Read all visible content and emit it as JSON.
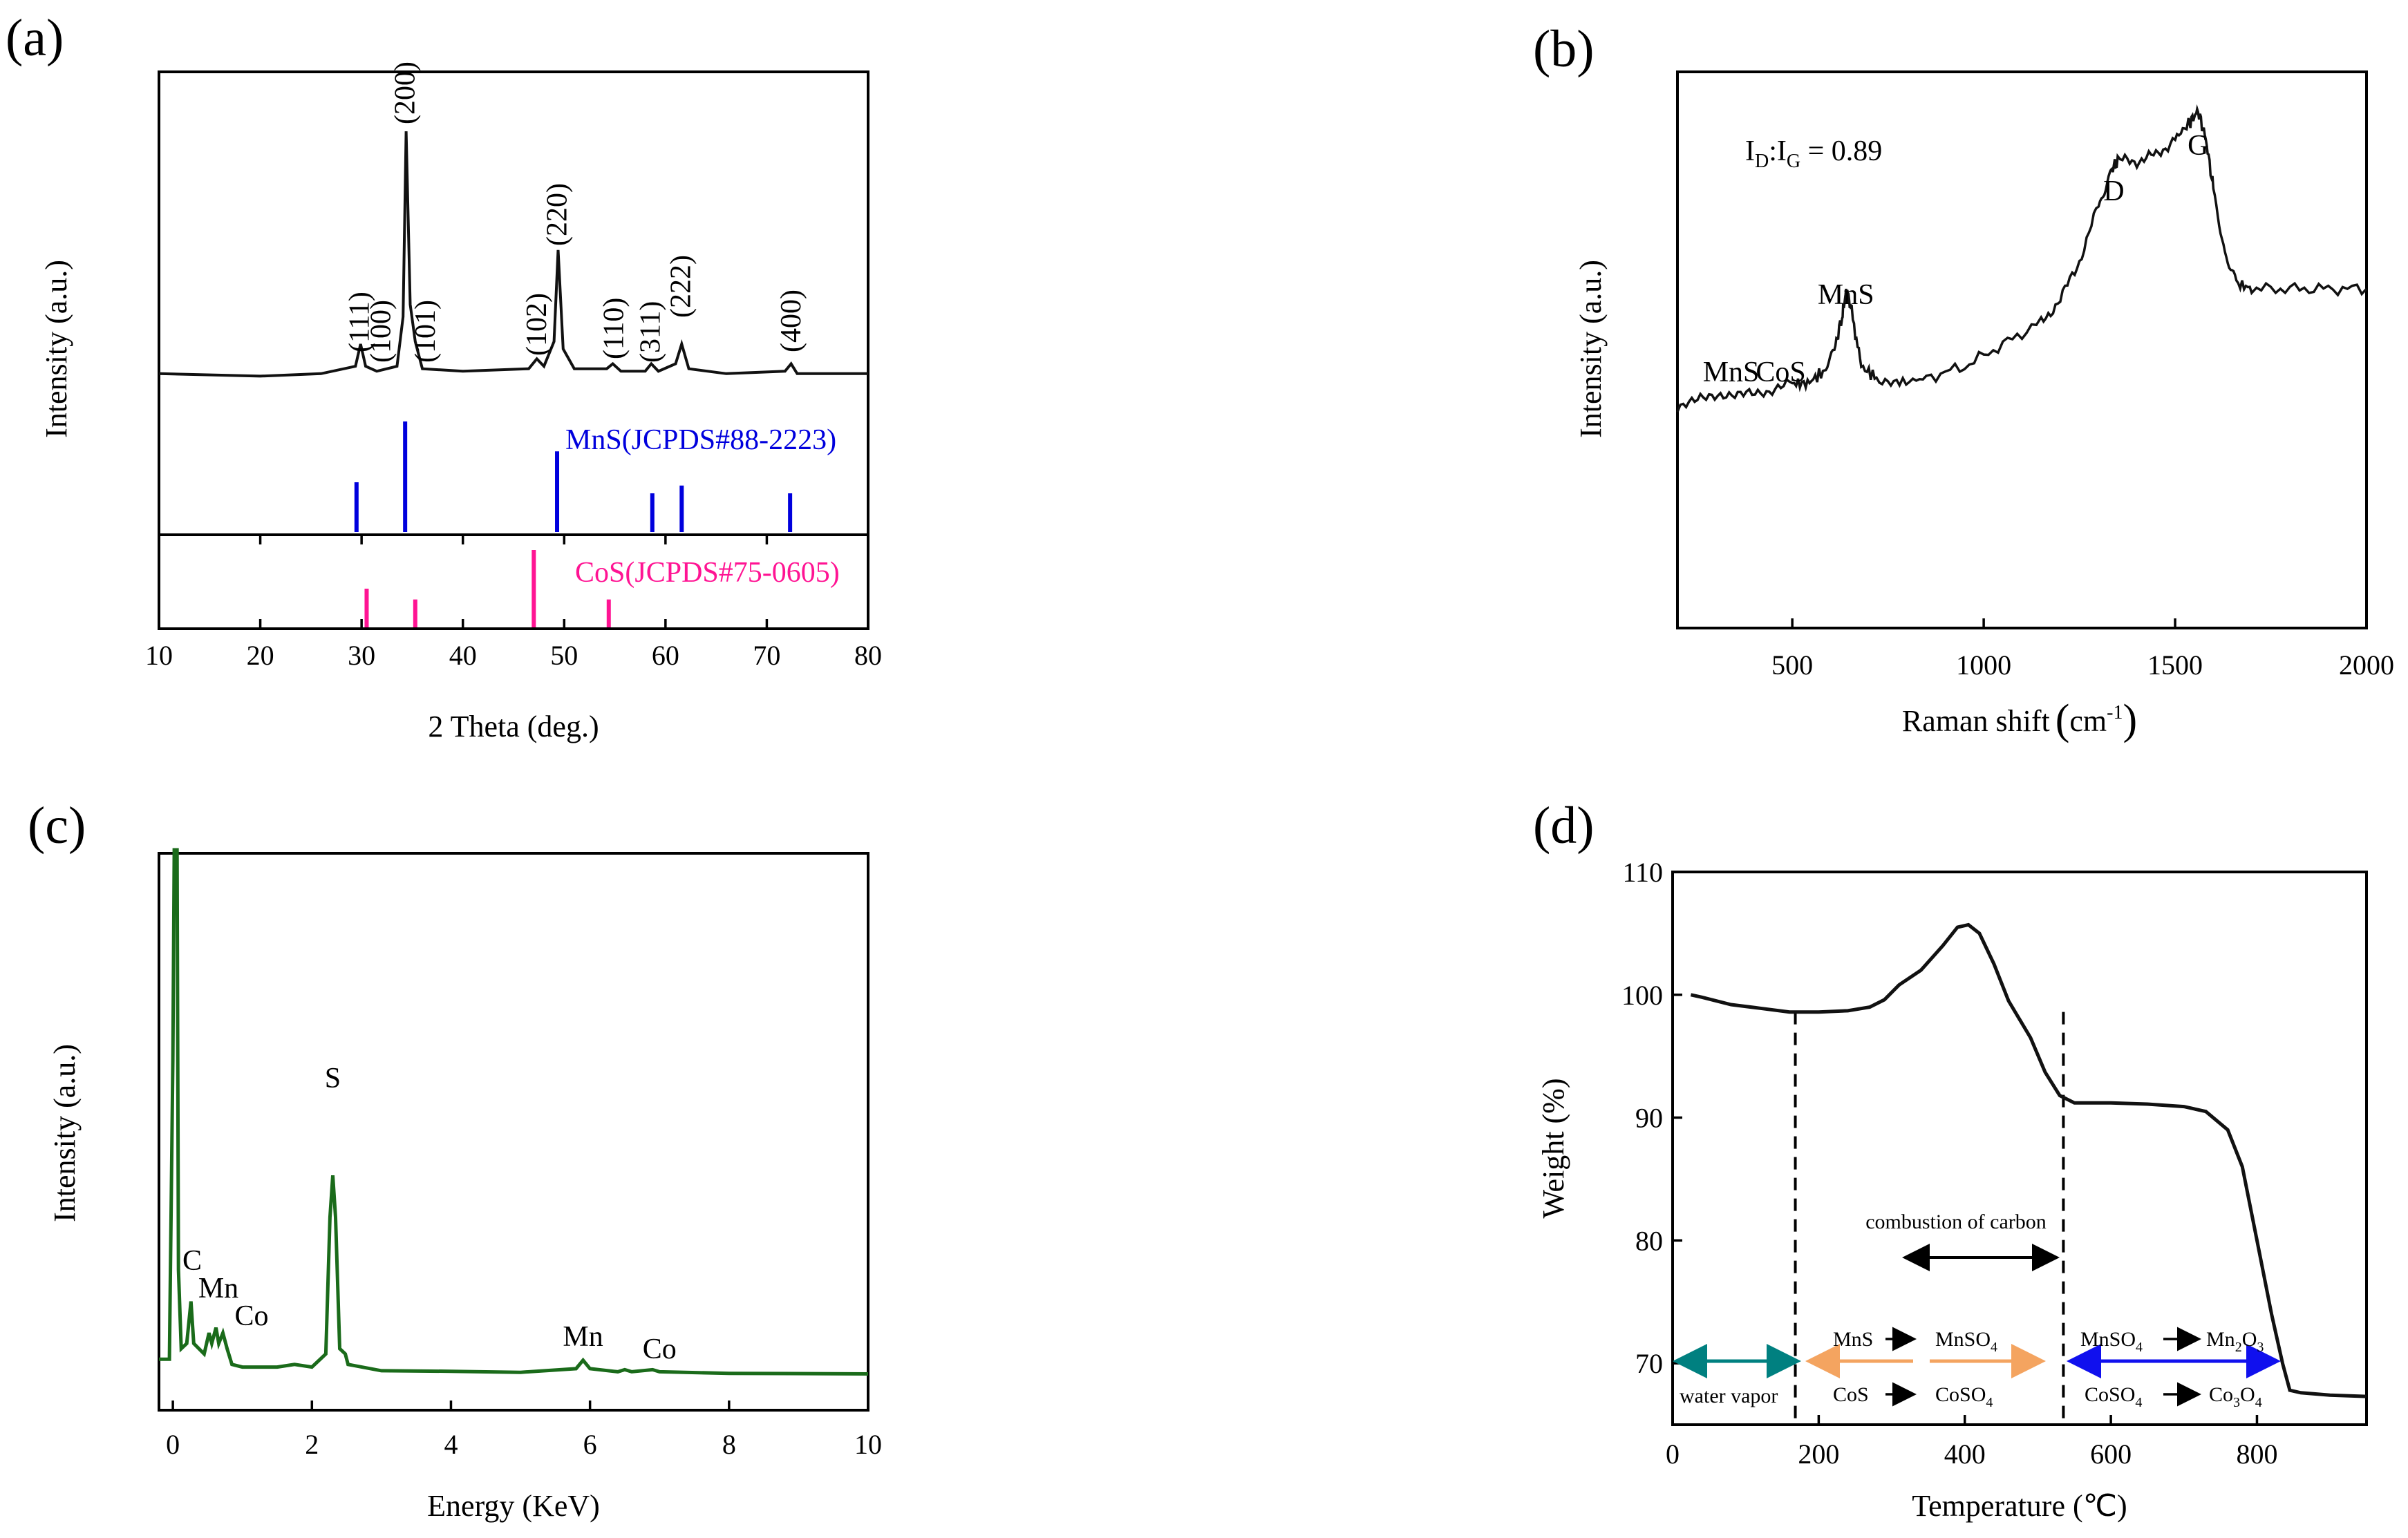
{
  "panels": {
    "a": {
      "label": "(a)"
    },
    "b": {
      "label": "(b)"
    },
    "c": {
      "label": "(c)"
    },
    "d": {
      "label": "(d)"
    }
  },
  "chart_data": [
    {
      "id": "a",
      "type": "line",
      "xlabel": "2 Theta (deg.)",
      "ylabel": "Intensity (a.u.)",
      "xlim": [
        10,
        80
      ],
      "xticks": [
        "10",
        "20",
        "30",
        "40",
        "50",
        "60",
        "70",
        "80"
      ],
      "series": [
        {
          "points": [
            [
              10,
              0.02
            ],
            [
              20,
              0.01
            ],
            [
              26,
              0.02
            ],
            [
              29.4,
              0.05
            ],
            [
              29.9,
              0.14
            ],
            [
              30.4,
              0.05
            ],
            [
              31.5,
              0.03
            ],
            [
              33.5,
              0.05
            ],
            [
              34.1,
              0.25
            ],
            [
              34.4,
              1.0
            ],
            [
              34.8,
              0.3
            ],
            [
              35.3,
              0.15
            ],
            [
              36,
              0.04
            ],
            [
              40,
              0.03
            ],
            [
              46.5,
              0.04
            ],
            [
              47.3,
              0.08
            ],
            [
              48,
              0.05
            ],
            [
              49.0,
              0.15
            ],
            [
              49.4,
              0.52
            ],
            [
              49.9,
              0.12
            ],
            [
              51,
              0.04
            ],
            [
              54.2,
              0.04
            ],
            [
              54.8,
              0.06
            ],
            [
              55.6,
              0.03
            ],
            [
              58.0,
              0.03
            ],
            [
              58.6,
              0.06
            ],
            [
              59.3,
              0.03
            ],
            [
              61.0,
              0.06
            ],
            [
              61.6,
              0.14
            ],
            [
              62.3,
              0.04
            ],
            [
              66,
              0.02
            ],
            [
              71.8,
              0.03
            ],
            [
              72.4,
              0.06
            ],
            [
              73.0,
              0.02
            ],
            [
              80,
              0.02
            ]
          ]
        }
      ],
      "annotations": [
        {
          "text": "(111)",
          "x": 29.9
        },
        {
          "text": "(100)",
          "x": 32.0
        },
        {
          "text": "(200)",
          "x": 34.4
        },
        {
          "text": "(101)",
          "x": 36.4
        },
        {
          "text": "(102)",
          "x": 47.4
        },
        {
          "text": "(220)",
          "x": 49.4
        },
        {
          "text": "(110)",
          "x": 55.0
        },
        {
          "text": "(311)",
          "x": 58.6
        },
        {
          "text": "(222)",
          "x": 61.6
        },
        {
          "text": "(400)",
          "x": 72.5
        }
      ],
      "reference_mns": {
        "name": "MnS(JCPDS#88-2223)",
        "color": "#0000dd",
        "lines": [
          [
            29.5,
            0.45
          ],
          [
            34.3,
            1.0
          ],
          [
            49.3,
            0.73
          ],
          [
            58.7,
            0.35
          ],
          [
            61.6,
            0.42
          ],
          [
            72.3,
            0.35
          ]
        ]
      },
      "reference_cos": {
        "name": "CoS(JCPDS#75-0605)",
        "color": "#ff1493",
        "lines": [
          [
            30.5,
            0.5
          ],
          [
            35.3,
            0.36
          ],
          [
            47.0,
            1.0
          ],
          [
            54.4,
            0.36
          ]
        ]
      }
    },
    {
      "id": "b",
      "type": "line",
      "xlabel": "Raman shift",
      "xunit": "cm",
      "xunit_exp": "-1",
      "ylabel": "Intensity (a.u.)",
      "xlim": [
        200,
        2000
      ],
      "xticks": [
        "500",
        "1000",
        "1500",
        "2000"
      ],
      "series": [
        {
          "points": [
            [
              200,
              0.39
            ],
            [
              260,
              0.41
            ],
            [
              320,
              0.42
            ],
            [
              380,
              0.43
            ],
            [
              440,
              0.42
            ],
            [
              500,
              0.44
            ],
            [
              540,
              0.44
            ],
            [
              580,
              0.46
            ],
            [
              610,
              0.5
            ],
            [
              630,
              0.56
            ],
            [
              642,
              0.61
            ],
            [
              655,
              0.57
            ],
            [
              680,
              0.47
            ],
            [
              720,
              0.45
            ],
            [
              780,
              0.44
            ],
            [
              850,
              0.45
            ],
            [
              950,
              0.47
            ],
            [
              1050,
              0.51
            ],
            [
              1150,
              0.55
            ],
            [
              1200,
              0.59
            ],
            [
              1250,
              0.66
            ],
            [
              1300,
              0.76
            ],
            [
              1330,
              0.82
            ],
            [
              1350,
              0.84
            ],
            [
              1400,
              0.84
            ],
            [
              1450,
              0.85
            ],
            [
              1500,
              0.88
            ],
            [
              1540,
              0.91
            ],
            [
              1560,
              0.93
            ],
            [
              1580,
              0.88
            ],
            [
              1600,
              0.79
            ],
            [
              1630,
              0.67
            ],
            [
              1660,
              0.62
            ],
            [
              1700,
              0.61
            ],
            [
              1800,
              0.61
            ],
            [
              1900,
              0.61
            ],
            [
              2000,
              0.61
            ]
          ]
        }
      ],
      "annotations": [
        {
          "text": "MnS",
          "x": 340
        },
        {
          "text": "CoS",
          "x": 470
        },
        {
          "text": "MnS",
          "x": 640
        },
        {
          "text": "D",
          "x": 1340
        },
        {
          "text": "G",
          "x": 1560
        }
      ],
      "ratio_text": {
        "main": "I",
        "sub_d": "D",
        "colon": ":I",
        "sub_g": "G",
        "value": " = 0.89"
      }
    },
    {
      "id": "c",
      "type": "line",
      "color": "#1a6b1a",
      "xlabel": "Energy (KeV)",
      "ylabel": "Intensity (a.u.)",
      "xlim": [
        -0.2,
        10
      ],
      "xticks": [
        "0",
        "2",
        "4",
        "6",
        "8",
        "10"
      ],
      "series": [
        {
          "points": [
            [
              -0.2,
              0.03
            ],
            [
              -0.05,
              0.03
            ],
            [
              0.0,
              0.6
            ],
            [
              0.02,
              1.0
            ],
            [
              0.06,
              1.0
            ],
            [
              0.08,
              0.2
            ],
            [
              0.12,
              0.05
            ],
            [
              0.2,
              0.06
            ],
            [
              0.26,
              0.14
            ],
            [
              0.3,
              0.06
            ],
            [
              0.45,
              0.04
            ],
            [
              0.52,
              0.08
            ],
            [
              0.56,
              0.06
            ],
            [
              0.62,
              0.09
            ],
            [
              0.66,
              0.06
            ],
            [
              0.72,
              0.08
            ],
            [
              0.78,
              0.05
            ],
            [
              0.85,
              0.02
            ],
            [
              1.0,
              0.015
            ],
            [
              1.5,
              0.015
            ],
            [
              1.75,
              0.02
            ],
            [
              2.0,
              0.015
            ],
            [
              2.2,
              0.04
            ],
            [
              2.26,
              0.3
            ],
            [
              2.3,
              0.38
            ],
            [
              2.34,
              0.3
            ],
            [
              2.4,
              0.05
            ],
            [
              2.48,
              0.04
            ],
            [
              2.52,
              0.02
            ],
            [
              3.0,
              0.008
            ],
            [
              4.0,
              0.007
            ],
            [
              5.0,
              0.005
            ],
            [
              5.8,
              0.012
            ],
            [
              5.9,
              0.028
            ],
            [
              6.0,
              0.012
            ],
            [
              6.4,
              0.006
            ],
            [
              6.5,
              0.01
            ],
            [
              6.6,
              0.006
            ],
            [
              6.9,
              0.01
            ],
            [
              7.0,
              0.006
            ],
            [
              8.0,
              0.003
            ],
            [
              10.0,
              0.002
            ]
          ]
        }
      ],
      "annotations": [
        {
          "text": "C",
          "x": 0.26
        },
        {
          "text": "Mn",
          "x": 0.6
        },
        {
          "text": "Co",
          "x": 1.1
        },
        {
          "text": "S",
          "x": 2.3
        },
        {
          "text": "Mn",
          "x": 5.9
        },
        {
          "text": "Co",
          "x": 7.0
        }
      ]
    },
    {
      "id": "d",
      "type": "line",
      "xlabel": "Temperature (℃)",
      "ylabel": "Weight (%)",
      "xlim": [
        0,
        950
      ],
      "ylim": [
        65,
        110
      ],
      "xticks": [
        "0",
        "200",
        "400",
        "600",
        "800"
      ],
      "yticks": [
        "70",
        "80",
        "90",
        "100",
        "110"
      ],
      "series": [
        {
          "points": [
            [
              25,
              100.0
            ],
            [
              40,
              99.8
            ],
            [
              80,
              99.2
            ],
            [
              120,
              98.9
            ],
            [
              160,
              98.6
            ],
            [
              200,
              98.6
            ],
            [
              240,
              98.7
            ],
            [
              270,
              99.0
            ],
            [
              290,
              99.6
            ],
            [
              310,
              100.8
            ],
            [
              340,
              102.0
            ],
            [
              370,
              104.0
            ],
            [
              390,
              105.5
            ],
            [
              405,
              105.7
            ],
            [
              420,
              105.0
            ],
            [
              440,
              102.5
            ],
            [
              460,
              99.5
            ],
            [
              490,
              96.5
            ],
            [
              510,
              93.7
            ],
            [
              530,
              91.8
            ],
            [
              550,
              91.2
            ],
            [
              600,
              91.2
            ],
            [
              650,
              91.1
            ],
            [
              700,
              90.9
            ],
            [
              730,
              90.5
            ],
            [
              760,
              89.0
            ],
            [
              780,
              86.0
            ],
            [
              800,
              80.0
            ],
            [
              820,
              74.0
            ],
            [
              835,
              70.0
            ],
            [
              845,
              67.8
            ],
            [
              860,
              67.6
            ],
            [
              900,
              67.4
            ],
            [
              950,
              67.3
            ]
          ]
        }
      ],
      "dashed_lines_x": [
        168,
        535
      ],
      "annotations": {
        "combustion": "combustion of carbon",
        "water_vapor": "water vapor",
        "mns": "MnS",
        "mnso4": "MnSO",
        "mnso4_sub": "4",
        "cos": "CoS",
        "coso4": "CoSO",
        "coso4_sub": "4",
        "mnso4_b": "MnSO",
        "mnso4_b_sub": "4",
        "mn2o3": "Mn",
        "mn2o3_sub1": "2",
        "mn2o3_o": "O",
        "mn2o3_sub2": "3",
        "coso4_b": "CoSO",
        "coso4_b_sub": "4",
        "co3o4": "Co",
        "co3o4_sub1": "3",
        "co3o4_o": "O",
        "co3o4_sub2": "4"
      },
      "arrow_colors": {
        "water": "#008080",
        "orange": "#f4a460",
        "blue": "#1010ee",
        "black": "#000000"
      }
    }
  ]
}
